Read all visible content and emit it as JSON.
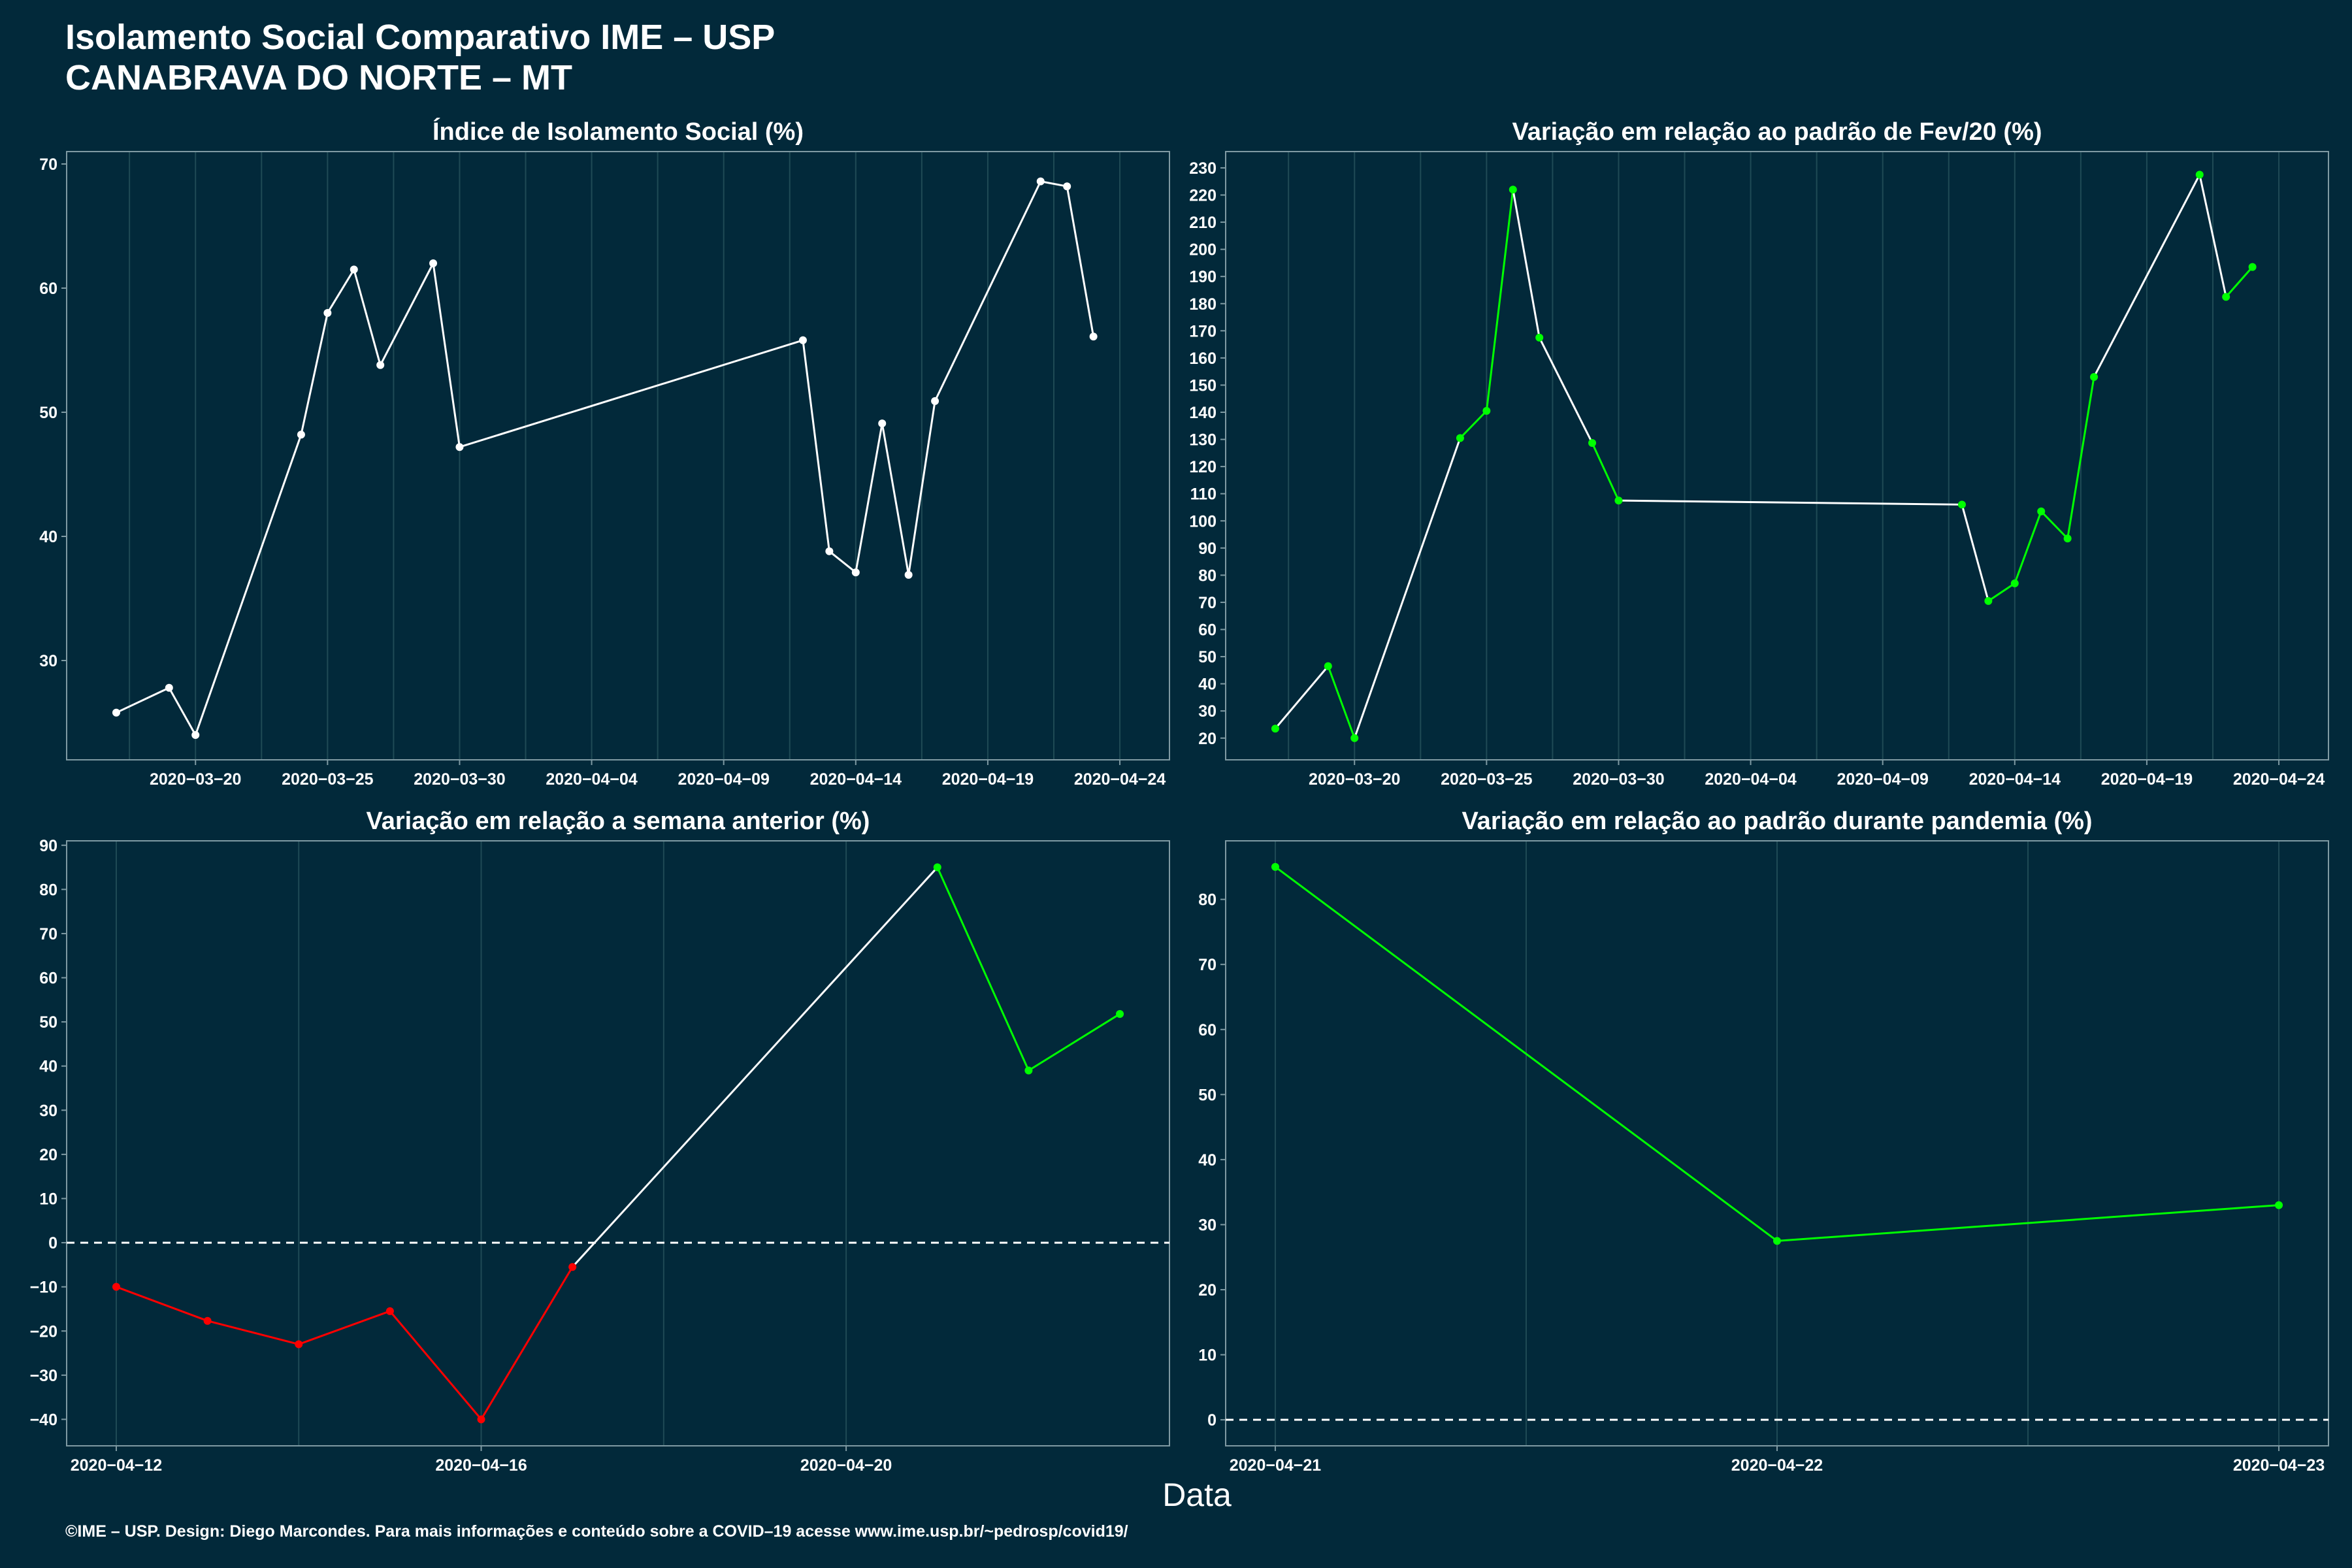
{
  "header": {
    "title_line1": "Isolamento Social Comparativo IME – USP",
    "title_line2": "CANABRAVA DO NORTE – MT"
  },
  "xlabel": "Data",
  "footer": "©IME – USP. Design: Diego Marcondes. Para mais informações e conteúdo sobre a COVID–19 acesse www.ime.usp.br/~pedrosp/covid19/",
  "colors": {
    "background": "#02293a",
    "positive": "#00ff00",
    "negative": "#ff0000",
    "neutral": "#ffffff",
    "grid": "#1f4a55",
    "axis": "#7f9aa3"
  },
  "chart_data": [
    {
      "type": "line",
      "title": "Índice de Isolamento Social (%)",
      "xlabel": "Data",
      "ylabel": "",
      "xlim": [
        "2020-03-17",
        "2020-04-24"
      ],
      "ylim": [
        22,
        71
      ],
      "yticks": [
        30,
        40,
        50,
        60,
        70
      ],
      "xticks": [
        "2020-03-20",
        "2020-03-25",
        "2020-03-30",
        "2020-04-04",
        "2020-04-09",
        "2020-04-14",
        "2020-04-19",
        "2020-04-24"
      ],
      "grid": true,
      "color_mode": "white",
      "points": [
        {
          "x": "2020-03-17",
          "y": 25.8
        },
        {
          "x": "2020-03-19",
          "y": 27.8
        },
        {
          "x": "2020-03-20",
          "y": 24.0
        },
        {
          "x": "2020-03-24",
          "y": 48.2
        },
        {
          "x": "2020-03-25",
          "y": 58.0
        },
        {
          "x": "2020-03-26",
          "y": 61.5
        },
        {
          "x": "2020-03-27",
          "y": 53.8
        },
        {
          "x": "2020-03-29",
          "y": 62.0
        },
        {
          "x": "2020-03-30",
          "y": 47.2
        },
        {
          "x": "2020-04-12",
          "y": 55.8
        },
        {
          "x": "2020-04-13",
          "y": 38.8
        },
        {
          "x": "2020-04-14",
          "y": 37.1
        },
        {
          "x": "2020-04-15",
          "y": 49.1
        },
        {
          "x": "2020-04-16",
          "y": 36.9
        },
        {
          "x": "2020-04-17",
          "y": 50.9
        },
        {
          "x": "2020-04-21",
          "y": 68.6
        },
        {
          "x": "2020-04-22",
          "y": 68.2
        },
        {
          "x": "2020-04-23",
          "y": 56.1
        }
      ]
    },
    {
      "type": "line",
      "title": "Variação em relação ao padrão de Fev/20 (%)",
      "xlabel": "Data",
      "ylabel": "",
      "xlim": [
        "2020-03-17",
        "2020-04-24"
      ],
      "ylim": [
        12,
        236
      ],
      "yticks": [
        20,
        30,
        40,
        50,
        60,
        70,
        80,
        90,
        100,
        110,
        120,
        130,
        140,
        150,
        160,
        170,
        180,
        190,
        200,
        210,
        220,
        230
      ],
      "xticks": [
        "2020-03-20",
        "2020-03-25",
        "2020-03-30",
        "2020-04-04",
        "2020-04-09",
        "2020-04-14",
        "2020-04-19",
        "2020-04-24"
      ],
      "grid": true,
      "color_mode": "trend",
      "points": [
        {
          "x": "2020-03-17",
          "y": 23.5
        },
        {
          "x": "2020-03-19",
          "y": 46.5
        },
        {
          "x": "2020-03-20",
          "y": 20.0
        },
        {
          "x": "2020-03-24",
          "y": 130.5
        },
        {
          "x": "2020-03-25",
          "y": 140.5
        },
        {
          "x": "2020-03-26",
          "y": 222.0
        },
        {
          "x": "2020-03-27",
          "y": 167.5
        },
        {
          "x": "2020-03-29",
          "y": 128.7
        },
        {
          "x": "2020-03-30",
          "y": 107.5
        },
        {
          "x": "2020-04-12",
          "y": 106.0
        },
        {
          "x": "2020-04-13",
          "y": 70.5
        },
        {
          "x": "2020-04-14",
          "y": 77.0
        },
        {
          "x": "2020-04-15",
          "y": 103.5
        },
        {
          "x": "2020-04-16",
          "y": 93.5
        },
        {
          "x": "2020-04-17",
          "y": 153.0
        },
        {
          "x": "2020-04-21",
          "y": 227.5
        },
        {
          "x": "2020-04-22",
          "y": 182.5
        },
        {
          "x": "2020-04-23",
          "y": 193.5
        }
      ]
    },
    {
      "type": "line",
      "title": "Variação em relação a semana anterior (%)",
      "xlabel": "Data",
      "ylabel": "",
      "xlim": [
        "2020-04-12",
        "2020-04-23"
      ],
      "ylim": [
        -46,
        91
      ],
      "yticks": [
        -40,
        -30,
        -20,
        -10,
        0,
        10,
        20,
        30,
        40,
        50,
        60,
        70,
        80,
        90
      ],
      "xticks": [
        "2020-04-12",
        "2020-04-16",
        "2020-04-20"
      ],
      "grid": true,
      "color_mode": "sign",
      "zero_line": true,
      "points": [
        {
          "x": "2020-04-12",
          "y": -10.0
        },
        {
          "x": "2020-04-13",
          "y": -17.7
        },
        {
          "x": "2020-04-14",
          "y": -23.0
        },
        {
          "x": "2020-04-15",
          "y": -15.5
        },
        {
          "x": "2020-04-16",
          "y": -40.0
        },
        {
          "x": "2020-04-17",
          "y": -5.5
        },
        {
          "x": "2020-04-21",
          "y": 85.0
        },
        {
          "x": "2020-04-22",
          "y": 39.0
        },
        {
          "x": "2020-04-23",
          "y": 51.8
        }
      ]
    },
    {
      "type": "line",
      "title": "Variação em relação ao padrão durante pandemia (%)",
      "xlabel": "Data",
      "ylabel": "",
      "xlim": [
        "2020-04-21",
        "2020-04-23"
      ],
      "ylim": [
        -4,
        89
      ],
      "yticks": [
        0,
        10,
        20,
        30,
        40,
        50,
        60,
        70,
        80
      ],
      "xticks": [
        "2020-04-21",
        "2020-04-22",
        "2020-04-23"
      ],
      "grid": true,
      "color_mode": "sign",
      "zero_line": true,
      "points": [
        {
          "x": "2020-04-21",
          "y": 85.0
        },
        {
          "x": "2020-04-22",
          "y": 27.5
        },
        {
          "x": "2020-04-23",
          "y": 33.0
        }
      ]
    }
  ]
}
